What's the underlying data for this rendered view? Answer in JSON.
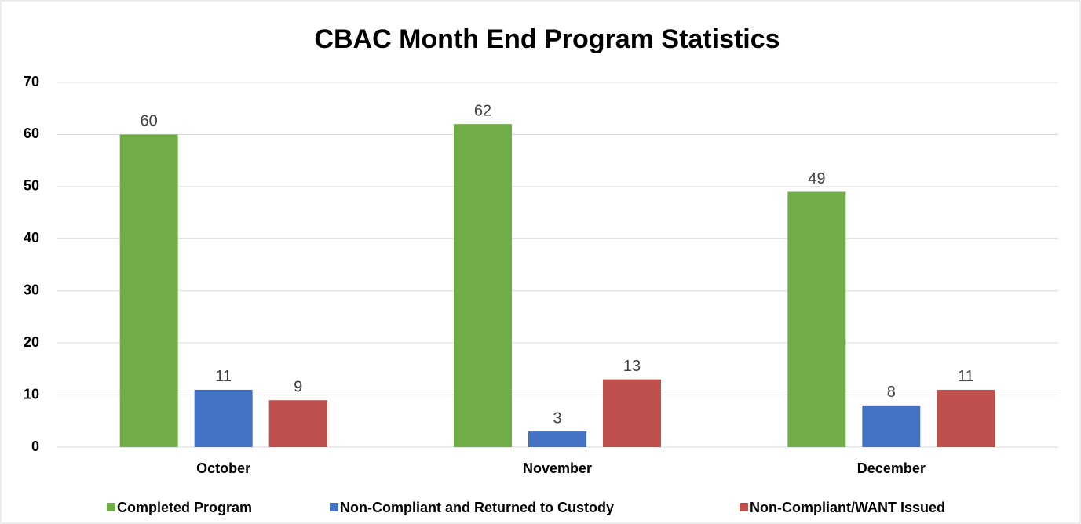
{
  "chart_data": {
    "type": "bar",
    "title": "CBAC Month End Program Statistics",
    "categories": [
      "October",
      "November",
      "December"
    ],
    "series": [
      {
        "name": "Completed Program",
        "color": "#70ad47",
        "values": [
          60,
          62,
          49
        ]
      },
      {
        "name": "Non-Compliant and Returned to Custody",
        "color": "#4472c4",
        "values": [
          11,
          3,
          8
        ]
      },
      {
        "name": "Non-Compliant/WANT Issued",
        "color": "#c0504d",
        "values": [
          9,
          13,
          11
        ]
      }
    ],
    "ylim": [
      0,
      70
    ],
    "yticks": [
      0,
      10,
      20,
      30,
      40,
      50,
      60,
      70
    ],
    "grid": true,
    "legend": "bottom"
  }
}
